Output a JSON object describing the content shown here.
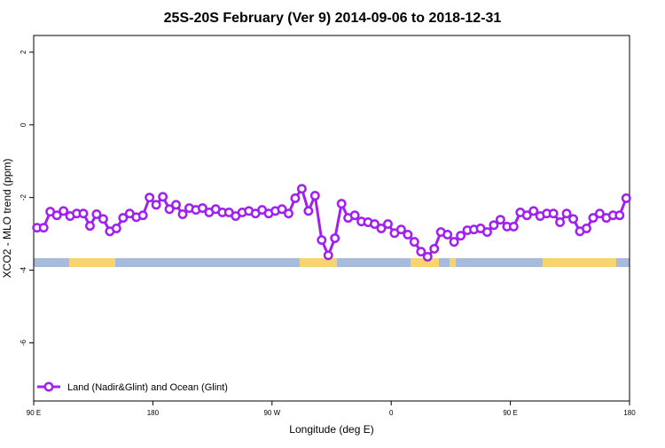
{
  "chart_data": {
    "type": "line",
    "title": "25S-20S February (Ver 9)   2014-09-06 to 2018-12-31",
    "x_label": "Longitude (deg E)",
    "y_label": "XCO2 - MLO trend (ppm)",
    "xlim": [
      90,
      540
    ],
    "ylim": [
      -7.6,
      2.46
    ],
    "xticks": [
      {
        "value": 90,
        "label": "90 E"
      },
      180,
      {
        "value": 270,
        "label": "90 W"
      },
      {
        "value": 360,
        "label": "0"
      },
      {
        "value": 450,
        "label": "90 E"
      },
      {
        "value": 540,
        "label": "180"
      }
    ],
    "yticks": [
      2,
      0,
      -2,
      -4,
      -6
    ],
    "grid": false,
    "legend": "bottom-left",
    "x": [
      92.5,
      97.5,
      102.5,
      107.5,
      112.5,
      117.5,
      122.5,
      127.5,
      132.5,
      137.5,
      142.5,
      147.5,
      152.5,
      157.5,
      162.5,
      167.5,
      172.5,
      177.5,
      182.5,
      187.5,
      192.5,
      197.5,
      202.5,
      207.5,
      212.5,
      217.5,
      222.5,
      227.5,
      232.5,
      237.5,
      242.5,
      247.5,
      252.5,
      257.5,
      262.5,
      267.5,
      272.5,
      277.5,
      282.5,
      287.5,
      292.5,
      297.5,
      302.5,
      307.5,
      312.5,
      317.5,
      322.5,
      327.5,
      332.5,
      337.5,
      342.5,
      347.5,
      352.5,
      357.5,
      362.5,
      367.5,
      372.5,
      377.5,
      382.5,
      387.5,
      392.5,
      397.5,
      402.5,
      407.5,
      412.5,
      417.5,
      422.5,
      427.5,
      432.5,
      437.5,
      442.5,
      447.5,
      452.5,
      457.5,
      462.5,
      467.5,
      472.5,
      477.5,
      482.5,
      487.5,
      492.5,
      497.5,
      502.5,
      507.5,
      512.5,
      517.5,
      522.5,
      527.5,
      532.5,
      537.5
    ],
    "series": [
      {
        "name": "Land (Nadir&Glint) and Ocean (Glint)",
        "color": "#a020f0",
        "values": [
          -2.83,
          -2.83,
          -2.39,
          -2.49,
          -2.37,
          -2.51,
          -2.44,
          -2.44,
          -2.78,
          -2.46,
          -2.59,
          -2.93,
          -2.85,
          -2.56,
          -2.44,
          -2.54,
          -2.49,
          -2.0,
          -2.2,
          -1.98,
          -2.32,
          -2.2,
          -2.46,
          -2.29,
          -2.34,
          -2.29,
          -2.41,
          -2.32,
          -2.41,
          -2.41,
          -2.51,
          -2.41,
          -2.37,
          -2.44,
          -2.34,
          -2.44,
          -2.37,
          -2.32,
          -2.44,
          -2.02,
          -1.76,
          -2.37,
          -1.95,
          -3.17,
          -3.59,
          -3.12,
          -2.17,
          -2.56,
          -2.49,
          -2.66,
          -2.68,
          -2.73,
          -2.85,
          -2.73,
          -2.98,
          -2.88,
          -3.02,
          -3.22,
          -3.49,
          -3.63,
          -3.41,
          -2.95,
          -3.02,
          -3.22,
          -3.05,
          -2.9,
          -2.88,
          -2.85,
          -2.95,
          -2.76,
          -2.61,
          -2.8,
          -2.8,
          -2.41,
          -2.49,
          -2.37,
          -2.51,
          -2.44,
          -2.44,
          -2.68,
          -2.44,
          -2.59,
          -2.93,
          -2.85,
          -2.56,
          -2.44,
          -2.56,
          -2.49,
          -2.49,
          -2.02
        ]
      }
    ]
  }
}
